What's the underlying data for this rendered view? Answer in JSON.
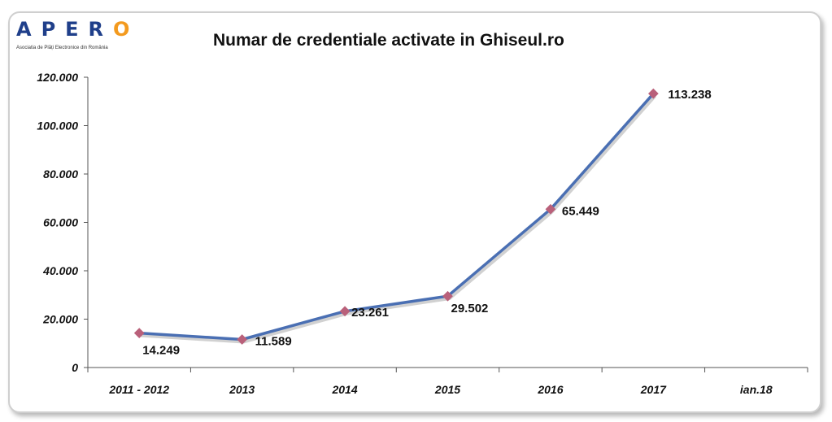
{
  "logo": {
    "main": "APER",
    "tail": "O",
    "subtitle": "Asociatia de Plăți Electronice din România"
  },
  "colors": {
    "line": "#4a6fb3",
    "marker": "#b9607a",
    "axis": "#555555",
    "logo_blue": "#1f3f8a",
    "logo_orange": "#f39a1e"
  },
  "chart_data": {
    "type": "line",
    "title": "Numar de credentiale activate in Ghiseul.ro",
    "xlabel": "",
    "ylabel": "",
    "categories": [
      "2011 - 2012",
      "2013",
      "2014",
      "2015",
      "2016",
      "2017",
      "ian.18"
    ],
    "series": [
      {
        "values": [
          14249,
          11589,
          23261,
          29502,
          65449,
          113238,
          null
        ],
        "data_labels": [
          "14.249",
          "11.589",
          "23.261",
          "29.502",
          "65.449",
          "113.238",
          null
        ]
      }
    ],
    "ylim": [
      0,
      120000
    ],
    "yticks": [
      0,
      20000,
      40000,
      60000,
      80000,
      100000,
      120000
    ],
    "ytick_labels": [
      "0",
      "20.000",
      "40.000",
      "60.000",
      "80.000",
      "100.000",
      "120.000"
    ],
    "grid": false,
    "legend": "none"
  }
}
